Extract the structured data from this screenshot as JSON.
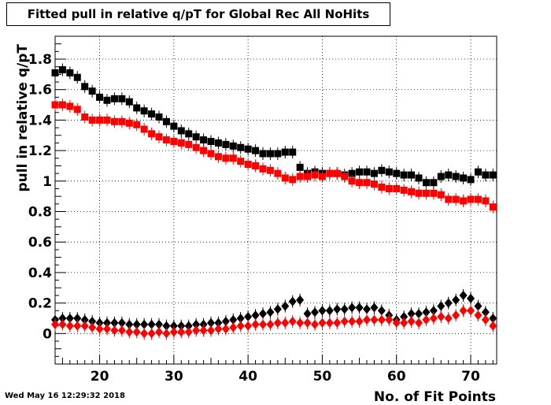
{
  "chart_data": {
    "type": "scatter",
    "title": "Fitted pull in relative q/pT for Global Rec All NoHits",
    "xlabel": "No. of Fit Points",
    "ylabel": "pull in relative q/pT",
    "xlim": [
      14,
      73.5
    ],
    "ylim": [
      -0.2,
      1.95
    ],
    "xticks": [
      20,
      30,
      40,
      50,
      60,
      70
    ],
    "yticks": [
      0,
      0.2,
      0.4,
      0.6,
      0.8,
      1,
      1.2,
      1.4,
      1.6,
      1.8
    ],
    "ytick_labels": [
      "0",
      "0.2",
      "0.4",
      "0.6",
      "0.8",
      "1",
      "1.2",
      "1.4",
      "1.6",
      "1.8"
    ],
    "grid": true,
    "x": [
      14,
      15,
      16,
      17,
      18,
      19,
      20,
      21,
      22,
      23,
      24,
      25,
      26,
      27,
      28,
      29,
      30,
      31,
      32,
      33,
      34,
      35,
      36,
      37,
      38,
      39,
      40,
      41,
      42,
      43,
      44,
      45,
      46,
      47,
      48,
      49,
      50,
      51,
      52,
      53,
      54,
      55,
      56,
      57,
      58,
      59,
      60,
      61,
      62,
      63,
      64,
      65,
      66,
      67,
      68,
      69,
      70,
      71,
      72,
      73
    ],
    "series": [
      {
        "marker": "square",
        "color": "#000000",
        "values": [
          1.71,
          1.73,
          1.71,
          1.68,
          1.62,
          1.59,
          1.55,
          1.53,
          1.54,
          1.54,
          1.52,
          1.48,
          1.46,
          1.44,
          1.42,
          1.39,
          1.36,
          1.33,
          1.31,
          1.29,
          1.27,
          1.26,
          1.25,
          1.24,
          1.23,
          1.22,
          1.21,
          1.2,
          1.18,
          1.18,
          1.18,
          1.19,
          1.19,
          1.09,
          1.05,
          1.06,
          1.05,
          1.05,
          1.05,
          1.04,
          1.05,
          1.06,
          1.06,
          1.05,
          1.07,
          1.06,
          1.05,
          1.04,
          1.04,
          1.02,
          0.99,
          0.99,
          1.03,
          1.04,
          1.03,
          1.02,
          1.01,
          1.06,
          1.04,
          1.04
        ]
      },
      {
        "marker": "square",
        "color": "#ff0000",
        "values": [
          1.5,
          1.5,
          1.49,
          1.47,
          1.42,
          1.4,
          1.4,
          1.4,
          1.39,
          1.39,
          1.38,
          1.37,
          1.34,
          1.31,
          1.29,
          1.27,
          1.26,
          1.25,
          1.24,
          1.22,
          1.2,
          1.18,
          1.16,
          1.15,
          1.15,
          1.13,
          1.11,
          1.1,
          1.08,
          1.07,
          1.05,
          1.02,
          1.01,
          1.03,
          1.03,
          1.04,
          1.03,
          1.05,
          1.05,
          1.03,
          1.0,
          0.99,
          0.99,
          0.98,
          0.96,
          0.95,
          0.95,
          0.94,
          0.93,
          0.92,
          0.92,
          0.92,
          0.91,
          0.88,
          0.88,
          0.87,
          0.88,
          0.88,
          0.87,
          0.83
        ]
      },
      {
        "marker": "diamond",
        "color": "#000000",
        "values": [
          0.09,
          0.1,
          0.1,
          0.1,
          0.09,
          0.08,
          0.07,
          0.07,
          0.07,
          0.07,
          0.06,
          0.06,
          0.06,
          0.06,
          0.06,
          0.05,
          0.05,
          0.05,
          0.05,
          0.06,
          0.06,
          0.07,
          0.07,
          0.08,
          0.09,
          0.1,
          0.11,
          0.12,
          0.13,
          0.14,
          0.16,
          0.18,
          0.21,
          0.22,
          0.13,
          0.14,
          0.15,
          0.15,
          0.16,
          0.16,
          0.17,
          0.17,
          0.16,
          0.17,
          0.15,
          0.12,
          0.09,
          0.11,
          0.13,
          0.13,
          0.14,
          0.15,
          0.18,
          0.2,
          0.22,
          0.25,
          0.23,
          0.18,
          0.14,
          0.1
        ]
      },
      {
        "marker": "diamond",
        "color": "#ff0000",
        "values": [
          0.06,
          0.06,
          0.05,
          0.05,
          0.05,
          0.04,
          0.03,
          0.03,
          0.02,
          0.02,
          0.01,
          0.01,
          0.0,
          0.0,
          0.01,
          0.0,
          0.01,
          0.01,
          0.01,
          0.02,
          0.02,
          0.02,
          0.03,
          0.03,
          0.04,
          0.05,
          0.05,
          0.06,
          0.06,
          0.06,
          0.07,
          0.07,
          0.08,
          0.07,
          0.07,
          0.06,
          0.07,
          0.07,
          0.07,
          0.08,
          0.08,
          0.08,
          0.09,
          0.09,
          0.09,
          0.09,
          0.07,
          0.07,
          0.08,
          0.07,
          0.09,
          0.1,
          0.11,
          0.1,
          0.12,
          0.15,
          0.15,
          0.12,
          0.09,
          0.05
        ]
      }
    ]
  },
  "footer": {
    "timestamp": "Wed May 16 12:29:32 2018"
  }
}
